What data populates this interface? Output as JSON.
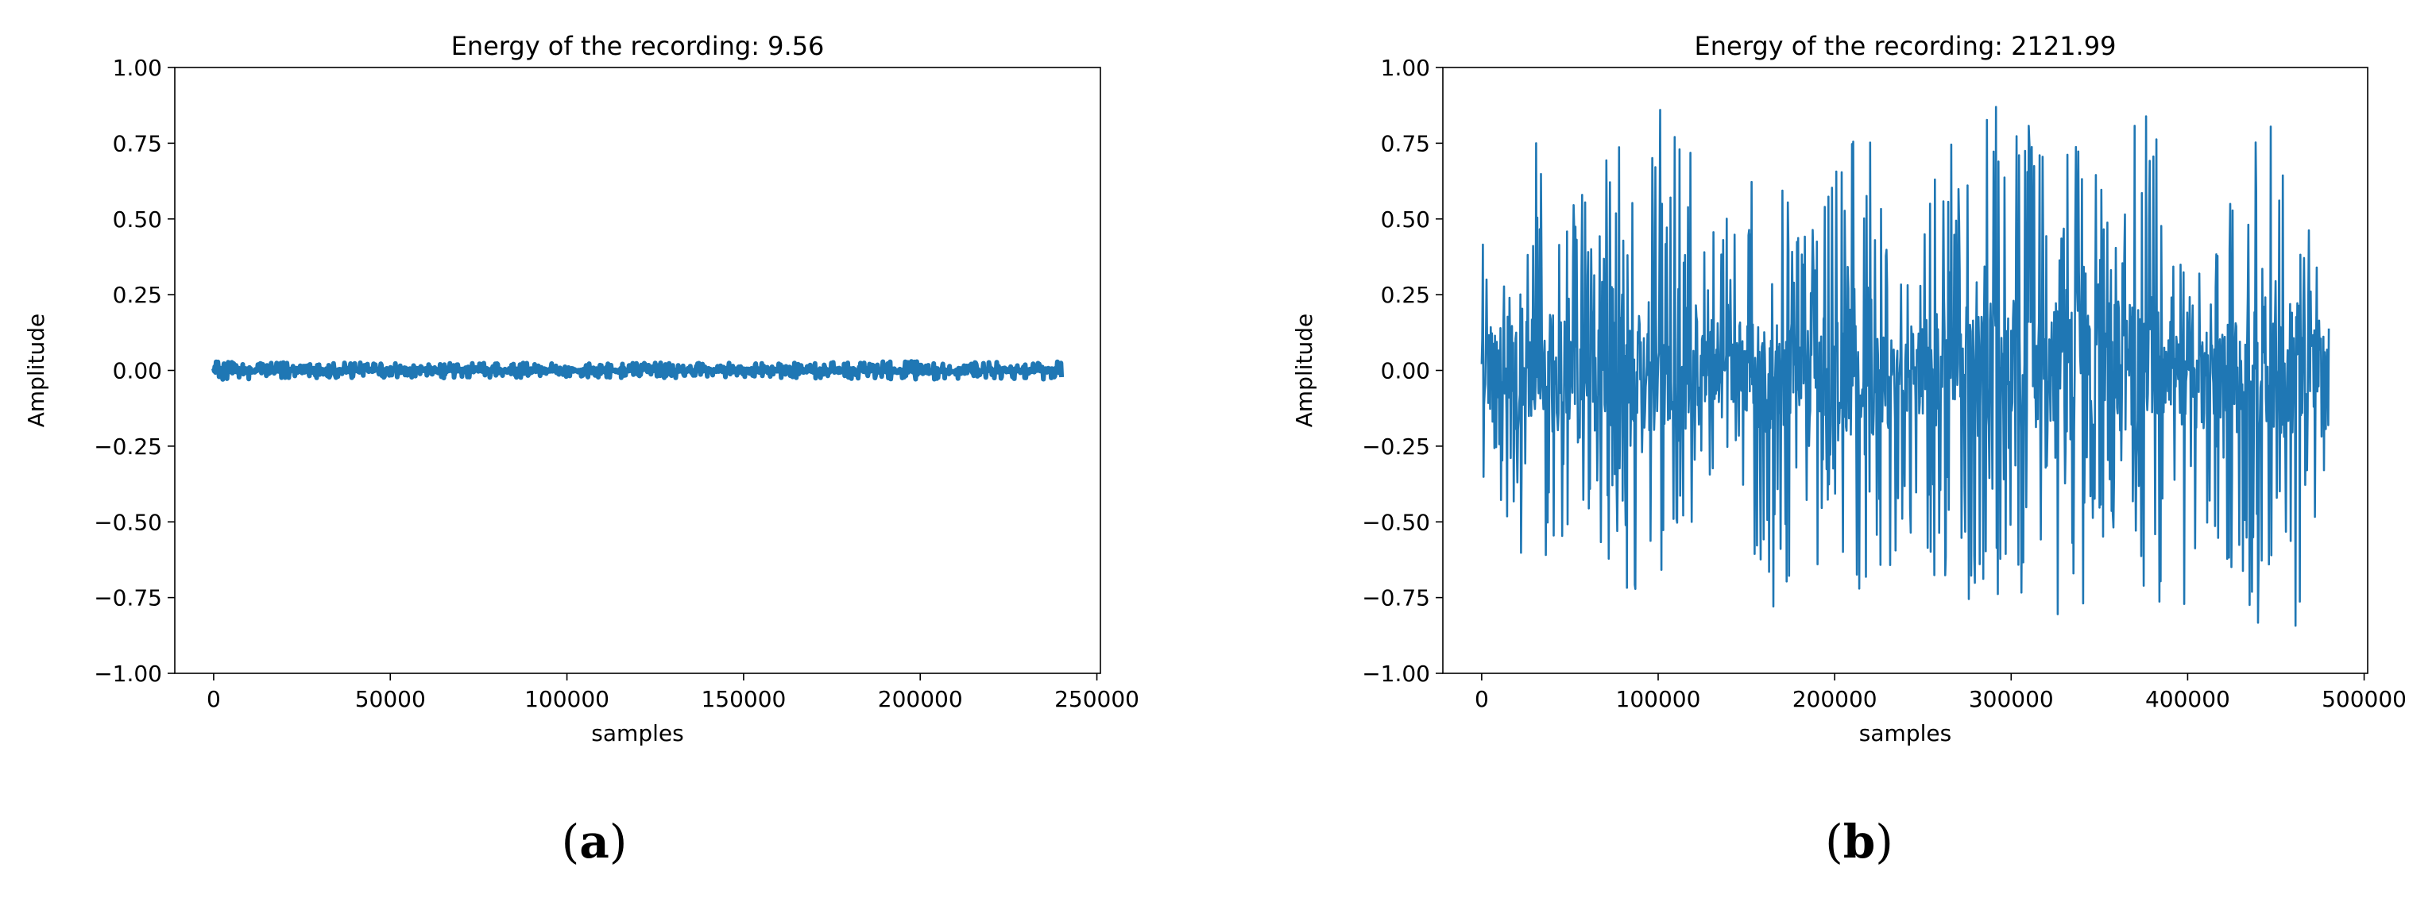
{
  "chart_data": [
    {
      "type": "line",
      "panel_label": "(a)",
      "panel_label_parts": {
        "open": "(",
        "letter": "a",
        "close": ")"
      },
      "title": "Energy of the recording: 9.56",
      "xlabel": "samples",
      "ylabel": "Amplitude",
      "xlim": [
        -11000,
        251000
      ],
      "ylim": [
        -1.0,
        1.0
      ],
      "xticks": [
        0,
        50000,
        100000,
        150000,
        200000,
        250000
      ],
      "xtick_labels": [
        "0",
        "50000",
        "100000",
        "150000",
        "200000",
        "250000"
      ],
      "yticks": [
        -1.0,
        -0.75,
        -0.5,
        -0.25,
        0.0,
        0.25,
        0.5,
        0.75,
        1.0
      ],
      "ytick_labels": [
        "−1.00",
        "−0.75",
        "−0.50",
        "−0.25",
        "0.00",
        "0.25",
        "0.50",
        "0.75",
        "1.00"
      ],
      "grid": false,
      "legend": "none",
      "series": [
        {
          "color": "#1f77b4",
          "x_range": [
            0,
            240000
          ],
          "envelope": {
            "x": [
              0,
              40000,
              80000,
              120000,
              160000,
              200000,
              240000
            ],
            "max": [
              0.03,
              0.025,
              0.025,
              0.025,
              0.025,
              0.03,
              0.03
            ],
            "min": [
              -0.03,
              -0.025,
              -0.025,
              -0.025,
              -0.025,
              -0.03,
              -0.03
            ]
          }
        }
      ]
    },
    {
      "type": "line",
      "panel_label": "(b)",
      "panel_label_parts": {
        "open": "(",
        "letter": "b",
        "close": ")"
      },
      "title": "Energy of the recording: 2121.99",
      "xlabel": "samples",
      "ylabel": "Amplitude",
      "xlim": [
        -22000,
        502000
      ],
      "ylim": [
        -1.0,
        1.0
      ],
      "xticks": [
        0,
        100000,
        200000,
        300000,
        400000,
        500000
      ],
      "xtick_labels": [
        "0",
        "100000",
        "200000",
        "300000",
        "400000",
        "500000"
      ],
      "yticks": [
        -1.0,
        -0.75,
        -0.5,
        -0.25,
        0.0,
        0.25,
        0.5,
        0.75,
        1.0
      ],
      "ytick_labels": [
        "−1.00",
        "−0.75",
        "−0.50",
        "−0.25",
        "0.00",
        "0.25",
        "0.50",
        "0.75",
        "1.00"
      ],
      "grid": false,
      "legend": "none",
      "series": [
        {
          "color": "#1f77b4",
          "x_range": [
            0,
            480000
          ],
          "envelope": {
            "x": [
              0,
              20000,
              40000,
              60000,
              80000,
              100000,
              120000,
              140000,
              160000,
              180000,
              200000,
              220000,
              240000,
              260000,
              280000,
              300000,
              320000,
              340000,
              360000,
              380000,
              400000,
              420000,
              440000,
              460000,
              480000
            ],
            "max": [
              0.45,
              0.76,
              0.75,
              0.6,
              0.78,
              0.94,
              0.7,
              0.5,
              0.77,
              0.5,
              0.72,
              0.9,
              0.3,
              0.72,
              0.85,
              0.92,
              0.7,
              0.78,
              0.85,
              0.88,
              0.3,
              0.5,
              0.9,
              0.92,
              0.25
            ],
            "min": [
              -0.42,
              -0.73,
              -0.65,
              -0.58,
              -0.72,
              -0.73,
              -0.6,
              -0.3,
              -0.88,
              -0.6,
              -0.85,
              -0.85,
              -0.52,
              -0.75,
              -0.85,
              -0.82,
              -0.82,
              -0.82,
              -0.82,
              -0.9,
              -0.78,
              -0.68,
              -0.93,
              -0.9,
              -0.28
            ]
          }
        }
      ]
    }
  ]
}
